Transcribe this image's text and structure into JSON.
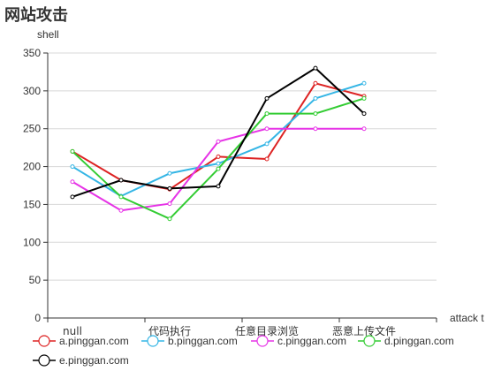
{
  "chart_data": {
    "type": "line",
    "title": "网站攻击",
    "ylabel": "shell",
    "xlabel": "attack t",
    "ylim": [
      0,
      350
    ],
    "yticks": [
      0,
      50,
      100,
      150,
      200,
      250,
      300,
      350
    ],
    "grid": true,
    "legend_position": "bottom-left",
    "x_labels": [
      {
        "label": "null",
        "pos": 0
      },
      {
        "label": "代码执行",
        "pos": 2
      },
      {
        "label": "任意目录浏览",
        "pos": 4
      },
      {
        "label": "恶意上传文件",
        "pos": 6
      }
    ],
    "x_count": 7,
    "series": [
      {
        "name": "a.pinggan.com",
        "color": "#dd2222",
        "values": [
          220,
          182,
          170,
          213,
          210,
          310,
          293
        ]
      },
      {
        "name": "b.pinggan.com",
        "color": "#33b5e5",
        "values": [
          200,
          161,
          191,
          204,
          230,
          290,
          310
        ]
      },
      {
        "name": "c.pinggan.com",
        "color": "#e633e6",
        "values": [
          180,
          142,
          151,
          233,
          250,
          250,
          250
        ]
      },
      {
        "name": "d.pinggan.com",
        "color": "#33cc33",
        "values": [
          220,
          160,
          131,
          197,
          270,
          270,
          290
        ]
      },
      {
        "name": "e.pinggan.com",
        "color": "#000000",
        "values": [
          160,
          182,
          171,
          174,
          290,
          330,
          270
        ]
      }
    ]
  }
}
